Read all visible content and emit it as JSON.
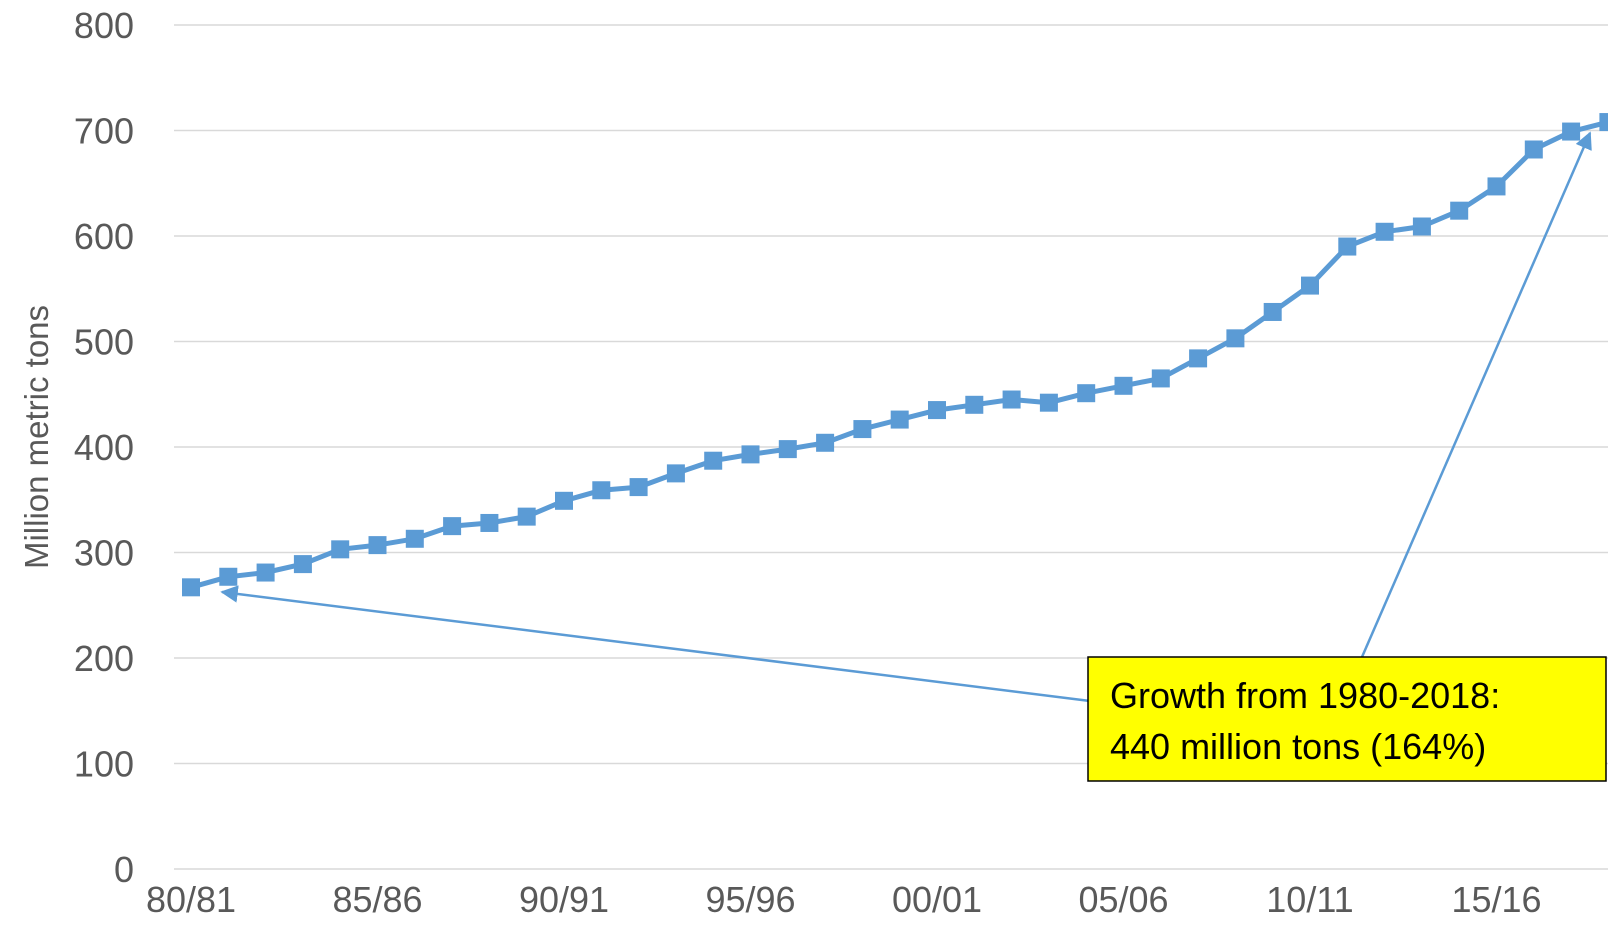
{
  "chart_data": {
    "type": "line",
    "title": "",
    "xlabel": "",
    "ylabel": "Million metric tons",
    "ylim": [
      0,
      800
    ],
    "yticks": [
      0,
      100,
      200,
      300,
      400,
      500,
      600,
      700,
      800
    ],
    "xtick_labels": [
      "80/81",
      "85/86",
      "90/91",
      "95/96",
      "00/01",
      "05/06",
      "10/11",
      "15/16"
    ],
    "grid": true,
    "legend": "none",
    "color": "#5b9bd5",
    "categories": [
      "80/81",
      "81/82",
      "82/83",
      "83/84",
      "84/85",
      "85/86",
      "86/87",
      "87/88",
      "88/89",
      "89/90",
      "90/91",
      "91/92",
      "92/93",
      "93/94",
      "94/95",
      "95/96",
      "96/97",
      "97/98",
      "98/99",
      "99/00",
      "00/01",
      "01/02",
      "02/03",
      "03/04",
      "04/05",
      "05/06",
      "06/07",
      "07/08",
      "08/09",
      "09/10",
      "10/11",
      "11/12",
      "12/13",
      "13/14",
      "14/15",
      "15/16",
      "16/17",
      "17/18",
      "18/19"
    ],
    "series": [
      {
        "values": [
          267,
          277,
          281,
          289,
          303,
          307,
          313,
          325,
          328,
          334,
          349,
          359,
          362,
          375,
          387,
          393,
          398,
          404,
          417,
          426,
          435,
          440,
          445,
          442,
          451,
          458,
          465,
          484,
          503,
          528,
          553,
          590,
          604,
          609,
          624,
          647,
          682,
          699,
          708
        ]
      }
    ],
    "annotations": {
      "text_line1": "Growth from 1980-2018:",
      "text_line2": "440 million tons (164%)",
      "box_color": "#ffff00"
    }
  }
}
